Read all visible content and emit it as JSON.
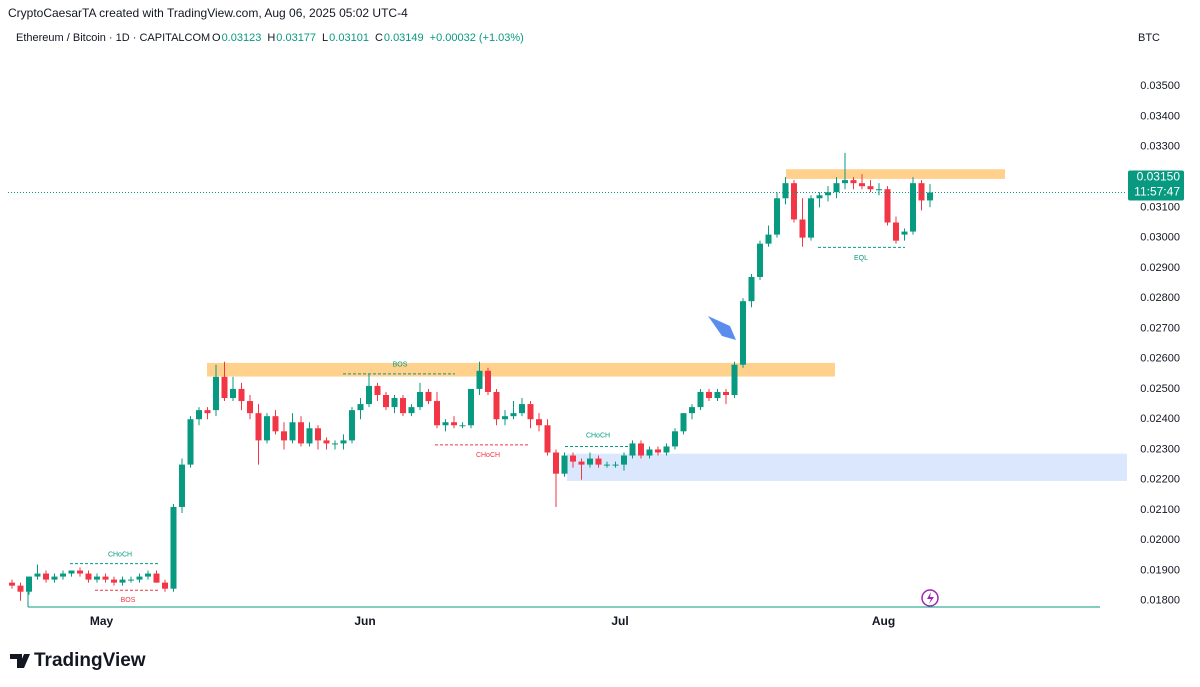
{
  "credit": "CryptoCaesarTA created with TradingView.com, Aug 06, 2025 05:02 UTC-4",
  "logo": "TradingView",
  "chart_data": {
    "type": "candlestick",
    "title": "Ethereum / Bitcoin · 1D · CAPITALCOM",
    "ohlc_labels": [
      "O",
      "H",
      "L",
      "C"
    ],
    "change": "+0.00032 (+1.03%)",
    "unit": "BTC",
    "price_tag": "0.03150",
    "countdown": "11:57:47",
    "categories": [
      null,
      null,
      null,
      null,
      null,
      null,
      null,
      null,
      null,
      null,
      null,
      "May",
      null,
      null,
      null,
      null,
      null,
      null,
      null,
      null,
      null,
      null,
      null,
      null,
      null,
      null,
      null,
      null,
      null,
      null,
      null,
      null,
      null,
      null,
      null,
      null,
      null,
      null,
      null,
      null,
      null,
      null,
      "Jun",
      null,
      null,
      null,
      null,
      null,
      null,
      null,
      null,
      null,
      null,
      null,
      null,
      null,
      null,
      null,
      null,
      null,
      null,
      null,
      null,
      null,
      null,
      null,
      null,
      null,
      null,
      null,
      null,
      null,
      "Jul",
      null,
      null,
      null,
      null,
      null,
      null,
      null,
      null,
      null,
      null,
      null,
      null,
      null,
      null,
      null,
      null,
      null,
      null,
      null,
      null,
      null,
      null,
      null,
      null,
      null,
      null,
      null,
      null,
      null,
      null,
      "Aug",
      null,
      null,
      null,
      null,
      null
    ],
    "open": [
      0.0186,
      0.0185,
      0.0183,
      0.0188,
      0.0189,
      0.0187,
      0.0188,
      0.0189,
      0.019,
      0.0189,
      0.0187,
      0.0188,
      0.0187,
      0.0186,
      0.0187,
      0.0187,
      0.0188,
      0.0189,
      0.0186,
      0.0184,
      0.0211,
      0.0225,
      0.024,
      0.0243,
      0.0243,
      0.0254,
      0.0247,
      0.025,
      0.0246,
      0.0242,
      0.0233,
      0.0241,
      0.0236,
      0.0233,
      0.0239,
      0.0232,
      0.0237,
      0.0233,
      0.0232,
      0.0232,
      0.0233,
      0.0243,
      0.0245,
      0.0251,
      0.0248,
      0.0244,
      0.0247,
      0.0242,
      0.0244,
      0.0249,
      0.0246,
      0.0238,
      0.0239,
      0.0238,
      0.0238,
      0.025,
      0.0256,
      0.0249,
      0.024,
      0.0241,
      0.0242,
      0.0245,
      0.024,
      0.0238,
      0.0229,
      0.0222,
      0.0228,
      0.0226,
      0.0225,
      0.0227,
      0.0225,
      0.0225,
      0.0225,
      0.0228,
      0.0232,
      0.0228,
      0.023,
      0.0229,
      0.0231,
      0.0236,
      0.0242,
      0.0244,
      0.0249,
      0.0247,
      0.0249,
      0.0248,
      0.0258,
      0.0279,
      0.0287,
      0.0298,
      0.0301,
      0.0313,
      0.0318,
      0.0306,
      0.03,
      0.0313,
      0.0314,
      0.0315,
      0.0318,
      0.0319,
      0.0318,
      0.0317,
      0.0316,
      0.0316,
      0.0305,
      0.0301,
      0.0302,
      0.0318,
      0.03123
    ],
    "high": [
      0.0187,
      0.0186,
      0.0188,
      0.0192,
      0.019,
      0.0189,
      0.019,
      0.019,
      0.0191,
      0.019,
      0.0189,
      0.0189,
      0.0188,
      0.0188,
      0.0188,
      0.0189,
      0.019,
      0.019,
      0.0187,
      0.0212,
      0.0227,
      0.0241,
      0.0244,
      0.0244,
      0.0258,
      0.0259,
      0.0254,
      0.0252,
      0.0248,
      0.0245,
      0.0242,
      0.0243,
      0.0239,
      0.0242,
      0.0241,
      0.0239,
      0.0238,
      0.0234,
      0.0233,
      0.0235,
      0.0244,
      0.0247,
      0.0255,
      0.0252,
      0.0249,
      0.0248,
      0.0248,
      0.0245,
      0.0252,
      0.025,
      0.0249,
      0.024,
      0.0241,
      0.0239,
      0.025,
      0.0259,
      0.0257,
      0.025,
      0.0243,
      0.0246,
      0.0247,
      0.0246,
      0.0242,
      0.024,
      0.023,
      0.0229,
      0.0229,
      0.0227,
      0.0229,
      0.0228,
      0.0226,
      0.0226,
      0.0229,
      0.0233,
      0.0233,
      0.0231,
      0.0231,
      0.0232,
      0.0237,
      0.0242,
      0.0245,
      0.025,
      0.025,
      0.025,
      0.025,
      0.0259,
      0.028,
      0.0288,
      0.0299,
      0.0304,
      0.0315,
      0.032,
      0.0319,
      0.0313,
      0.0314,
      0.0315,
      0.0317,
      0.032,
      0.0328,
      0.032,
      0.0321,
      0.0319,
      0.0318,
      0.0317,
      0.0307,
      0.0303,
      0.032,
      0.0319,
      0.03177
    ],
    "low": [
      0.0184,
      0.018,
      0.0182,
      0.0187,
      0.0186,
      0.0186,
      0.0187,
      0.0188,
      0.0188,
      0.0186,
      0.0186,
      0.0186,
      0.0185,
      0.0185,
      0.0186,
      0.0186,
      0.0187,
      0.0186,
      0.0183,
      0.0183,
      0.0209,
      0.0224,
      0.0238,
      0.024,
      0.0241,
      0.0246,
      0.0246,
      0.0243,
      0.024,
      0.0225,
      0.0232,
      0.0235,
      0.023,
      0.0232,
      0.0231,
      0.0231,
      0.023,
      0.023,
      0.023,
      0.023,
      0.0232,
      0.024,
      0.0244,
      0.0246,
      0.0243,
      0.0242,
      0.0241,
      0.0241,
      0.0243,
      0.0245,
      0.0237,
      0.0236,
      0.0237,
      0.0237,
      0.0237,
      0.0248,
      0.0248,
      0.0238,
      0.0238,
      0.024,
      0.0241,
      0.0237,
      0.0236,
      0.0228,
      0.0211,
      0.0221,
      0.0224,
      0.022,
      0.0224,
      0.0224,
      0.0224,
      0.0224,
      0.0223,
      0.0227,
      0.0227,
      0.0227,
      0.0228,
      0.0228,
      0.023,
      0.0235,
      0.024,
      0.0243,
      0.0246,
      0.0246,
      0.0245,
      0.0247,
      0.0257,
      0.0277,
      0.0286,
      0.0297,
      0.03,
      0.0311,
      0.0305,
      0.0297,
      0.0299,
      0.031,
      0.0312,
      0.0313,
      0.0316,
      0.0316,
      0.0316,
      0.0315,
      0.0314,
      0.0304,
      0.0298,
      0.0299,
      0.0301,
      0.0309,
      0.03101
    ],
    "close": [
      0.0185,
      0.0183,
      0.0188,
      0.0189,
      0.0187,
      0.0188,
      0.0189,
      0.019,
      0.0189,
      0.0187,
      0.0188,
      0.0187,
      0.0186,
      0.0187,
      0.0187,
      0.0188,
      0.0189,
      0.0186,
      0.0184,
      0.0211,
      0.0225,
      0.024,
      0.0243,
      0.0242,
      0.0254,
      0.0247,
      0.025,
      0.0246,
      0.0242,
      0.0233,
      0.0241,
      0.0236,
      0.0233,
      0.0239,
      0.0232,
      0.0237,
      0.0233,
      0.0232,
      0.0232,
      0.0233,
      0.0243,
      0.0245,
      0.0251,
      0.0248,
      0.0244,
      0.0247,
      0.0242,
      0.0244,
      0.0249,
      0.0246,
      0.0238,
      0.0239,
      0.0238,
      0.0238,
      0.025,
      0.0256,
      0.0249,
      0.024,
      0.0241,
      0.0242,
      0.0245,
      0.024,
      0.0238,
      0.0229,
      0.0222,
      0.0228,
      0.0226,
      0.0225,
      0.0227,
      0.0225,
      0.0225,
      0.0225,
      0.0228,
      0.0232,
      0.0228,
      0.023,
      0.0229,
      0.0231,
      0.0236,
      0.0242,
      0.0244,
      0.0249,
      0.0247,
      0.0249,
      0.0248,
      0.0258,
      0.0279,
      0.0287,
      0.0298,
      0.0301,
      0.0313,
      0.0318,
      0.0306,
      0.03,
      0.0313,
      0.0314,
      0.0315,
      0.0318,
      0.0319,
      0.0318,
      0.0317,
      0.0316,
      0.0316,
      0.0305,
      0.0299,
      0.0302,
      0.0318,
      0.03123,
      0.03149
    ],
    "up_color": "#089981",
    "down_color": "#f23645",
    "ylim": [
      0.0172,
      0.0362
    ],
    "yticks": [
      {
        "value": 0.018,
        "label": "0.01800"
      },
      {
        "value": 0.019,
        "label": "0.01900"
      },
      {
        "value": 0.02,
        "label": "0.02000"
      },
      {
        "value": 0.021,
        "label": "0.02100"
      },
      {
        "value": 0.022,
        "label": "0.02200"
      },
      {
        "value": 0.023,
        "label": "0.02300"
      },
      {
        "value": 0.024,
        "label": "0.02400"
      },
      {
        "value": 0.025,
        "label": "0.02500"
      },
      {
        "value": 0.026,
        "label": "0.02600"
      },
      {
        "value": 0.027,
        "label": "0.02700"
      },
      {
        "value": 0.028,
        "label": "0.02800"
      },
      {
        "value": 0.029,
        "label": "0.02900"
      },
      {
        "value": 0.03,
        "label": "0.03000"
      },
      {
        "value": 0.031,
        "label": "0.03100"
      },
      {
        "value": 0.032,
        "label": "0.03200"
      },
      {
        "value": 0.033,
        "label": "0.03300"
      },
      {
        "value": 0.034,
        "label": "0.03400"
      },
      {
        "value": 0.035,
        "label": "0.03500"
      }
    ],
    "zones": [
      {
        "low": 0.03194,
        "high": 0.03226,
        "color": "#ffcc80"
      },
      {
        "low": 0.02541,
        "high": 0.02586,
        "color": "#ffcc80"
      },
      {
        "low": 0.02196,
        "high": 0.02286,
        "color": "#d6e4fc"
      }
    ],
    "annotations": [
      {
        "text": "CHoCH",
        "value": 0.01923,
        "color": "#089981"
      },
      {
        "text": "BOS",
        "value": 0.01835,
        "color": "#f23645"
      },
      {
        "text": "BOS",
        "value": 0.0255,
        "color": "#089981"
      },
      {
        "text": "CHoCH",
        "value": 0.02315,
        "color": "#f23645"
      },
      {
        "text": "CHoCH",
        "value": 0.0231,
        "color": "#089981"
      },
      {
        "text": "EQL",
        "value": 0.02968,
        "color": "#089981"
      }
    ]
  }
}
